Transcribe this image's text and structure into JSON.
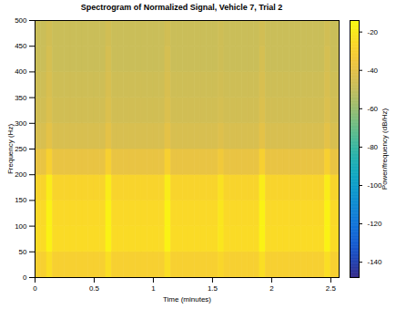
{
  "chart_data": {
    "type": "heatmap",
    "title": "Spectrogram of Normalized Signal, Vehicle 7, Trial 2",
    "x_label": "Time (minutes)",
    "y_label": "Frequency (Hz)",
    "xlim": [
      0,
      2.57
    ],
    "xticks": [
      0,
      0.5,
      1,
      1.5,
      2,
      2.5
    ],
    "ylim": [
      0,
      500
    ],
    "yticks": [
      0,
      50,
      100,
      150,
      200,
      250,
      300,
      350,
      400,
      450,
      500
    ],
    "time_bins": [
      0,
      0.05,
      0.1,
      0.15,
      0.2,
      0.25,
      0.3,
      0.35,
      0.4,
      0.45,
      0.5,
      0.55,
      0.6,
      0.65,
      0.7,
      0.75,
      0.8,
      0.85,
      0.9,
      0.95,
      1,
      1.05,
      1.1,
      1.15,
      1.2,
      1.25,
      1.3,
      1.35,
      1.4,
      1.45,
      1.5,
      1.55,
      1.6,
      1.65,
      1.7,
      1.75,
      1.8,
      1.85,
      1.9,
      1.95,
      2,
      2.05,
      2.1,
      2.15,
      2.2,
      2.25,
      2.3,
      2.35,
      2.4,
      2.45,
      2.5,
      2.57
    ],
    "frequency_bins": [
      0,
      50,
      100,
      150,
      200,
      250,
      300,
      350,
      400,
      450,
      500
    ],
    "cells": [
      [
        -30,
        -30,
        -24,
        -30,
        -30,
        -30,
        -30,
        -30,
        -30,
        -30,
        -30,
        -30,
        -24,
        -30,
        -30,
        -30,
        -30,
        -30,
        -30,
        -30,
        -30,
        -30,
        -24,
        -30,
        -30,
        -30,
        -30,
        -30,
        -30,
        -30,
        -30,
        -27,
        -30,
        -30,
        -30,
        -30,
        -30,
        -30,
        -24,
        -30,
        -30,
        -30,
        -30,
        -30,
        -30,
        -30,
        -30,
        -30,
        -30,
        -24,
        -30
      ],
      [
        -25,
        -25,
        -17,
        -25,
        -25,
        -25,
        -25,
        -25,
        -25,
        -25,
        -25,
        -25,
        -17,
        -25,
        -25,
        -25,
        -25,
        -25,
        -25,
        -25,
        -25,
        -25,
        -17,
        -25,
        -25,
        -25,
        -25,
        -25,
        -25,
        -25,
        -25,
        -21,
        -25,
        -25,
        -25,
        -25,
        -25,
        -25,
        -17,
        -25,
        -25,
        -25,
        -25,
        -25,
        -25,
        -25,
        -25,
        -25,
        -25,
        -17,
        -25
      ],
      [
        -26,
        -26,
        -17,
        -26,
        -26,
        -26,
        -26,
        -26,
        -26,
        -26,
        -26,
        -26,
        -17,
        -26,
        -26,
        -26,
        -26,
        -26,
        -26,
        -26,
        -26,
        -26,
        -17,
        -26,
        -26,
        -26,
        -26,
        -26,
        -26,
        -26,
        -26,
        -21,
        -26,
        -26,
        -26,
        -26,
        -26,
        -26,
        -17,
        -26,
        -26,
        -26,
        -26,
        -26,
        -26,
        -26,
        -26,
        -26,
        -26,
        -17,
        -26
      ],
      [
        -28,
        -28,
        -19,
        -28,
        -28,
        -28,
        -28,
        -28,
        -28,
        -28,
        -28,
        -28,
        -19,
        -28,
        -28,
        -28,
        -28,
        -28,
        -28,
        -28,
        -28,
        -28,
        -19,
        -28,
        -28,
        -28,
        -28,
        -28,
        -28,
        -28,
        -28,
        -23,
        -28,
        -28,
        -28,
        -28,
        -28,
        -28,
        -19,
        -28,
        -28,
        -28,
        -28,
        -28,
        -28,
        -28,
        -28,
        -28,
        -28,
        -19,
        -28
      ],
      [
        -38,
        -38,
        -30,
        -38,
        -38,
        -38,
        -38,
        -38,
        -38,
        -38,
        -38,
        -38,
        -30,
        -38,
        -38,
        -38,
        -38,
        -38,
        -38,
        -38,
        -38,
        -38,
        -30,
        -38,
        -38,
        -38,
        -38,
        -38,
        -38,
        -38,
        -38,
        -34,
        -38,
        -38,
        -38,
        -38,
        -38,
        -38,
        -30,
        -38,
        -38,
        -38,
        -38,
        -38,
        -38,
        -38,
        -38,
        -38,
        -38,
        -30,
        -38
      ],
      [
        -44,
        -44,
        -40,
        -44,
        -44,
        -44,
        -44,
        -44,
        -44,
        -44,
        -44,
        -44,
        -40,
        -44,
        -44,
        -44,
        -44,
        -44,
        -44,
        -44,
        -44,
        -44,
        -40,
        -44,
        -44,
        -44,
        -44,
        -44,
        -44,
        -44,
        -44,
        -42,
        -44,
        -44,
        -44,
        -44,
        -44,
        -44,
        -40,
        -44,
        -44,
        -44,
        -44,
        -44,
        -44,
        -44,
        -44,
        -44,
        -44,
        -40,
        -44
      ],
      [
        -46,
        -46,
        -43,
        -46,
        -46,
        -46,
        -46,
        -46,
        -46,
        -46,
        -46,
        -46,
        -43,
        -46,
        -46,
        -46,
        -46,
        -46,
        -46,
        -46,
        -46,
        -46,
        -43,
        -46,
        -46,
        -46,
        -46,
        -46,
        -46,
        -46,
        -46,
        -45,
        -46,
        -46,
        -46,
        -46,
        -46,
        -46,
        -43,
        -46,
        -46,
        -46,
        -46,
        -46,
        -46,
        -46,
        -46,
        -46,
        -46,
        -43,
        -46
      ],
      [
        -47,
        -47,
        -44,
        -47,
        -47,
        -47,
        -47,
        -47,
        -47,
        -47,
        -47,
        -47,
        -44,
        -47,
        -47,
        -47,
        -47,
        -47,
        -47,
        -47,
        -47,
        -47,
        -44,
        -47,
        -47,
        -47,
        -47,
        -47,
        -47,
        -47,
        -47,
        -46,
        -47,
        -47,
        -47,
        -47,
        -47,
        -47,
        -44,
        -47,
        -47,
        -47,
        -47,
        -47,
        -47,
        -47,
        -47,
        -47,
        -47,
        -44,
        -47
      ],
      [
        -48,
        -48,
        -45,
        -48,
        -48,
        -48,
        -48,
        -48,
        -48,
        -48,
        -48,
        -48,
        -45,
        -48,
        -48,
        -48,
        -48,
        -48,
        -48,
        -48,
        -48,
        -48,
        -45,
        -48,
        -48,
        -48,
        -48,
        -48,
        -48,
        -48,
        -48,
        -47,
        -48,
        -48,
        -48,
        -48,
        -48,
        -48,
        -45,
        -48,
        -48,
        -48,
        -48,
        -48,
        -48,
        -48,
        -48,
        -48,
        -48,
        -45,
        -48
      ],
      [
        -48,
        -48,
        -46,
        -48,
        -48,
        -48,
        -48,
        -48,
        -48,
        -48,
        -48,
        -48,
        -46,
        -48,
        -48,
        -48,
        -48,
        -48,
        -48,
        -48,
        -48,
        -48,
        -46,
        -48,
        -48,
        -48,
        -48,
        -48,
        -48,
        -48,
        -48,
        -47,
        -48,
        -48,
        -48,
        -48,
        -48,
        -48,
        -46,
        -48,
        -48,
        -48,
        -48,
        -48,
        -48,
        -48,
        -48,
        -48,
        -48,
        -46,
        -48
      ]
    ],
    "colorbar": {
      "label": "Power/frequency (dB/Hz)",
      "range": [
        -148,
        -14
      ],
      "ticks": [
        -140,
        -120,
        -100,
        -80,
        -60,
        -40,
        -20
      ]
    }
  }
}
